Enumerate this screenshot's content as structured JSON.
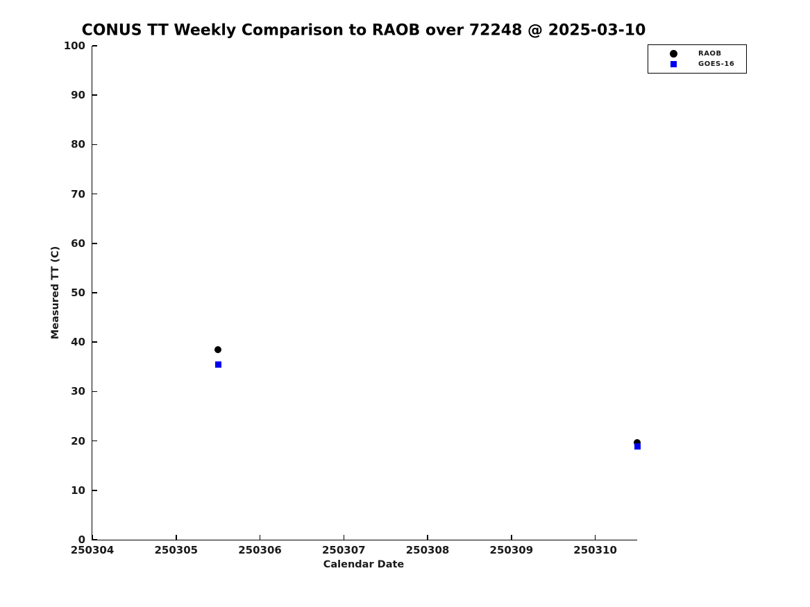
{
  "title": "CONUS TT Weekly Comparison to RAOB over 72248 @ 2025-03-10",
  "chart_data": {
    "type": "scatter",
    "title": "CONUS TT Weekly Comparison to RAOB over 72248 @ 2025-03-10",
    "xlabel": "Calendar Date",
    "ylabel": "Measured TT (C)",
    "xlim": [
      250304,
      250310.5
    ],
    "ylim": [
      0,
      100
    ],
    "x_ticks": [
      250304,
      250305,
      250306,
      250307,
      250308,
      250309,
      250310
    ],
    "y_ticks": [
      0,
      10,
      20,
      30,
      40,
      50,
      60,
      70,
      80,
      90,
      100
    ],
    "grid": false,
    "legend_position": "top-right",
    "x": [
      250305.5,
      250310.5
    ],
    "series": [
      {
        "name": "RAOB",
        "marker": "circle",
        "color": "#000000",
        "values": [
          38.5,
          19.7
        ]
      },
      {
        "name": "GOES-16",
        "marker": "square",
        "color": "#0000ee",
        "values": [
          35.5,
          18.9
        ]
      }
    ]
  }
}
